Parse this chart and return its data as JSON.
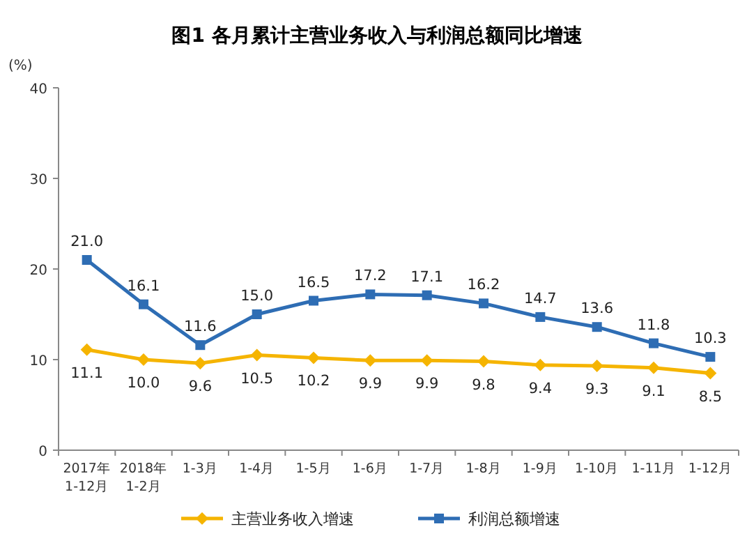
{
  "chart_data": {
    "type": "line",
    "title": "图1  各月累计主营业务收入与利润总额同比增速",
    "ylabel": "(%)",
    "categories": [
      "2017年 1-12月",
      "2018年 1-2月",
      "1-3月",
      "1-4月",
      "1-5月",
      "1-6月",
      "1-7月",
      "1-8月",
      "1-9月",
      "1-10月",
      "1-11月",
      "1-12月"
    ],
    "series": [
      {
        "name": "主营业务收入增速",
        "color": "#f5b400",
        "marker": "diamond",
        "values": [
          11.1,
          10.0,
          9.6,
          10.5,
          10.2,
          9.9,
          9.9,
          9.8,
          9.4,
          9.3,
          9.1,
          8.5
        ],
        "value_labels": [
          "11.1",
          "10.0",
          "9.6",
          "10.5",
          "10.2",
          "9.9",
          "9.9",
          "9.8",
          "9.4",
          "9.3",
          "9.1",
          "8.5"
        ]
      },
      {
        "name": "利润总额增速",
        "color": "#2e6db4",
        "marker": "square",
        "values": [
          21.0,
          16.1,
          11.6,
          15.0,
          16.5,
          17.2,
          17.1,
          16.2,
          14.7,
          13.6,
          11.8,
          10.3
        ],
        "value_labels": [
          "21.0",
          "16.1",
          "11.6",
          "15.0",
          "16.5",
          "17.2",
          "17.1",
          "16.2",
          "14.7",
          "13.6",
          "11.8",
          "10.3"
        ]
      }
    ],
    "ylim": [
      0,
      40
    ],
    "yticks": [
      0,
      10,
      20,
      30,
      40
    ],
    "legend": "bottom",
    "grid": false
  }
}
